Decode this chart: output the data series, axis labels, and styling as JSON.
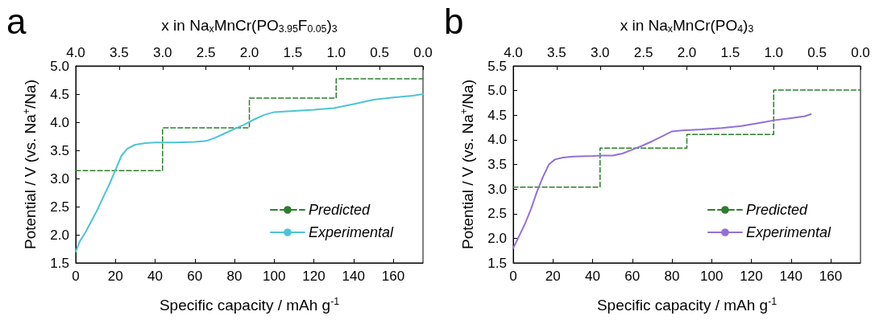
{
  "chart_data": [
    {
      "type": "line",
      "annotations": [
        "a"
      ],
      "x2label": "x in Na$_{x}$MnCr(PO$_{3.95}$F$_{0.05}$)$_{3}$",
      "xlabel": "Specific capacity / mAh g$^{-1}$",
      "ylabel": "Potential / V (vs. Na$^{+}$/Na)",
      "xlim": [
        0,
        175
      ],
      "xticks": [
        0,
        20,
        40,
        60,
        80,
        100,
        120,
        140,
        160
      ],
      "x2lim": [
        4.0,
        0.0
      ],
      "x2ticks": [
        {
          "value": 4,
          "label": "4.0"
        },
        3.5,
        {
          "value": 3,
          "label": "3.0"
        },
        2.5,
        {
          "value": 2,
          "label": "2.0"
        },
        1.5,
        {
          "value": 1,
          "label": "1.0"
        },
        0.5,
        {
          "value": 0,
          "label": "0.0"
        }
      ],
      "ylim": [
        1.5,
        5.0
      ],
      "yticks": [
        1.5,
        {
          "value": 2,
          "label": "2.0"
        },
        2.5,
        {
          "value": 3,
          "label": "3.0"
        },
        3.5,
        {
          "value": 4,
          "label": "4.0"
        },
        4.5,
        {
          "value": 5,
          "label": "5.0"
        }
      ],
      "grid": false,
      "legend": "bottom right",
      "series": [
        {
          "name": "Predicted",
          "type": "step",
          "line_style": "dashed",
          "color": "#2e7d2e",
          "x": [
            0,
            43.75,
            87.5,
            131.25,
            175
          ],
          "values": [
            3.14,
            3.9,
            4.43,
            4.77,
            4.77
          ]
        },
        {
          "name": "Experimental",
          "type": "line",
          "line_style": "solid",
          "color": "#4cc4d4",
          "x": [
            0,
            2,
            5,
            8,
            11,
            14,
            17,
            20,
            23,
            26,
            30,
            35,
            40,
            50,
            60,
            66,
            70,
            75,
            80,
            85,
            90,
            95,
            100,
            110,
            120,
            130,
            140,
            150,
            160,
            170,
            175
          ],
          "values": [
            1.7,
            1.88,
            2.05,
            2.25,
            2.45,
            2.68,
            2.9,
            3.15,
            3.4,
            3.53,
            3.6,
            3.63,
            3.64,
            3.64,
            3.65,
            3.67,
            3.72,
            3.8,
            3.88,
            3.96,
            4.05,
            4.13,
            4.18,
            4.2,
            4.22,
            4.25,
            4.32,
            4.4,
            4.44,
            4.47,
            4.5
          ]
        }
      ]
    },
    {
      "type": "line",
      "annotations": [
        "b"
      ],
      "x2label": "x in Na$_{x}$MnCr(PO$_{4}$)$_{3}$",
      "xlabel": "Specific capacity / mAh g$^{-1}$",
      "ylabel": "Potential / V (vs. Na$^{+}$/Na)",
      "xlim": [
        0,
        175
      ],
      "xticks": [
        0,
        20,
        40,
        60,
        80,
        100,
        120,
        140,
        160
      ],
      "x2lim": [
        4.0,
        0.0
      ],
      "x2ticks": [
        {
          "value": 4,
          "label": "4.0"
        },
        3.5,
        {
          "value": 3,
          "label": "3.0"
        },
        2.5,
        {
          "value": 2,
          "label": "2.0"
        },
        1.5,
        {
          "value": 1,
          "label": "1.0"
        },
        0.5,
        {
          "value": 0,
          "label": "0.0"
        }
      ],
      "ylim": [
        1.5,
        5.5
      ],
      "yticks": [
        1.5,
        {
          "value": 2,
          "label": "2.0"
        },
        2.5,
        {
          "value": 3,
          "label": "3.0"
        },
        3.5,
        {
          "value": 4,
          "label": "4.0"
        },
        4.5,
        {
          "value": 5,
          "label": "5.0"
        },
        5.5
      ],
      "grid": false,
      "legend": "bottom right",
      "series": [
        {
          "name": "Predicted",
          "type": "step",
          "line_style": "dashed",
          "color": "#2e7d2e",
          "x": [
            0,
            43.75,
            87.5,
            131.25,
            175
          ],
          "values": [
            3.04,
            3.83,
            4.11,
            5.01,
            5.01
          ]
        },
        {
          "name": "Experimental",
          "type": "line",
          "line_style": "solid",
          "color": "#9370d8",
          "x": [
            0,
            3,
            6,
            9,
            12,
            15,
            18,
            21,
            25,
            30,
            40,
            45,
            50,
            55,
            60,
            65,
            70,
            75,
            80,
            85,
            95,
            105,
            115,
            125,
            132,
            140,
            147,
            150
          ],
          "values": [
            1.8,
            2.05,
            2.3,
            2.6,
            2.95,
            3.25,
            3.5,
            3.6,
            3.64,
            3.66,
            3.67,
            3.68,
            3.68,
            3.72,
            3.8,
            3.88,
            3.97,
            4.07,
            4.17,
            4.19,
            4.21,
            4.24,
            4.28,
            4.35,
            4.4,
            4.44,
            4.48,
            4.52
          ]
        }
      ]
    }
  ]
}
